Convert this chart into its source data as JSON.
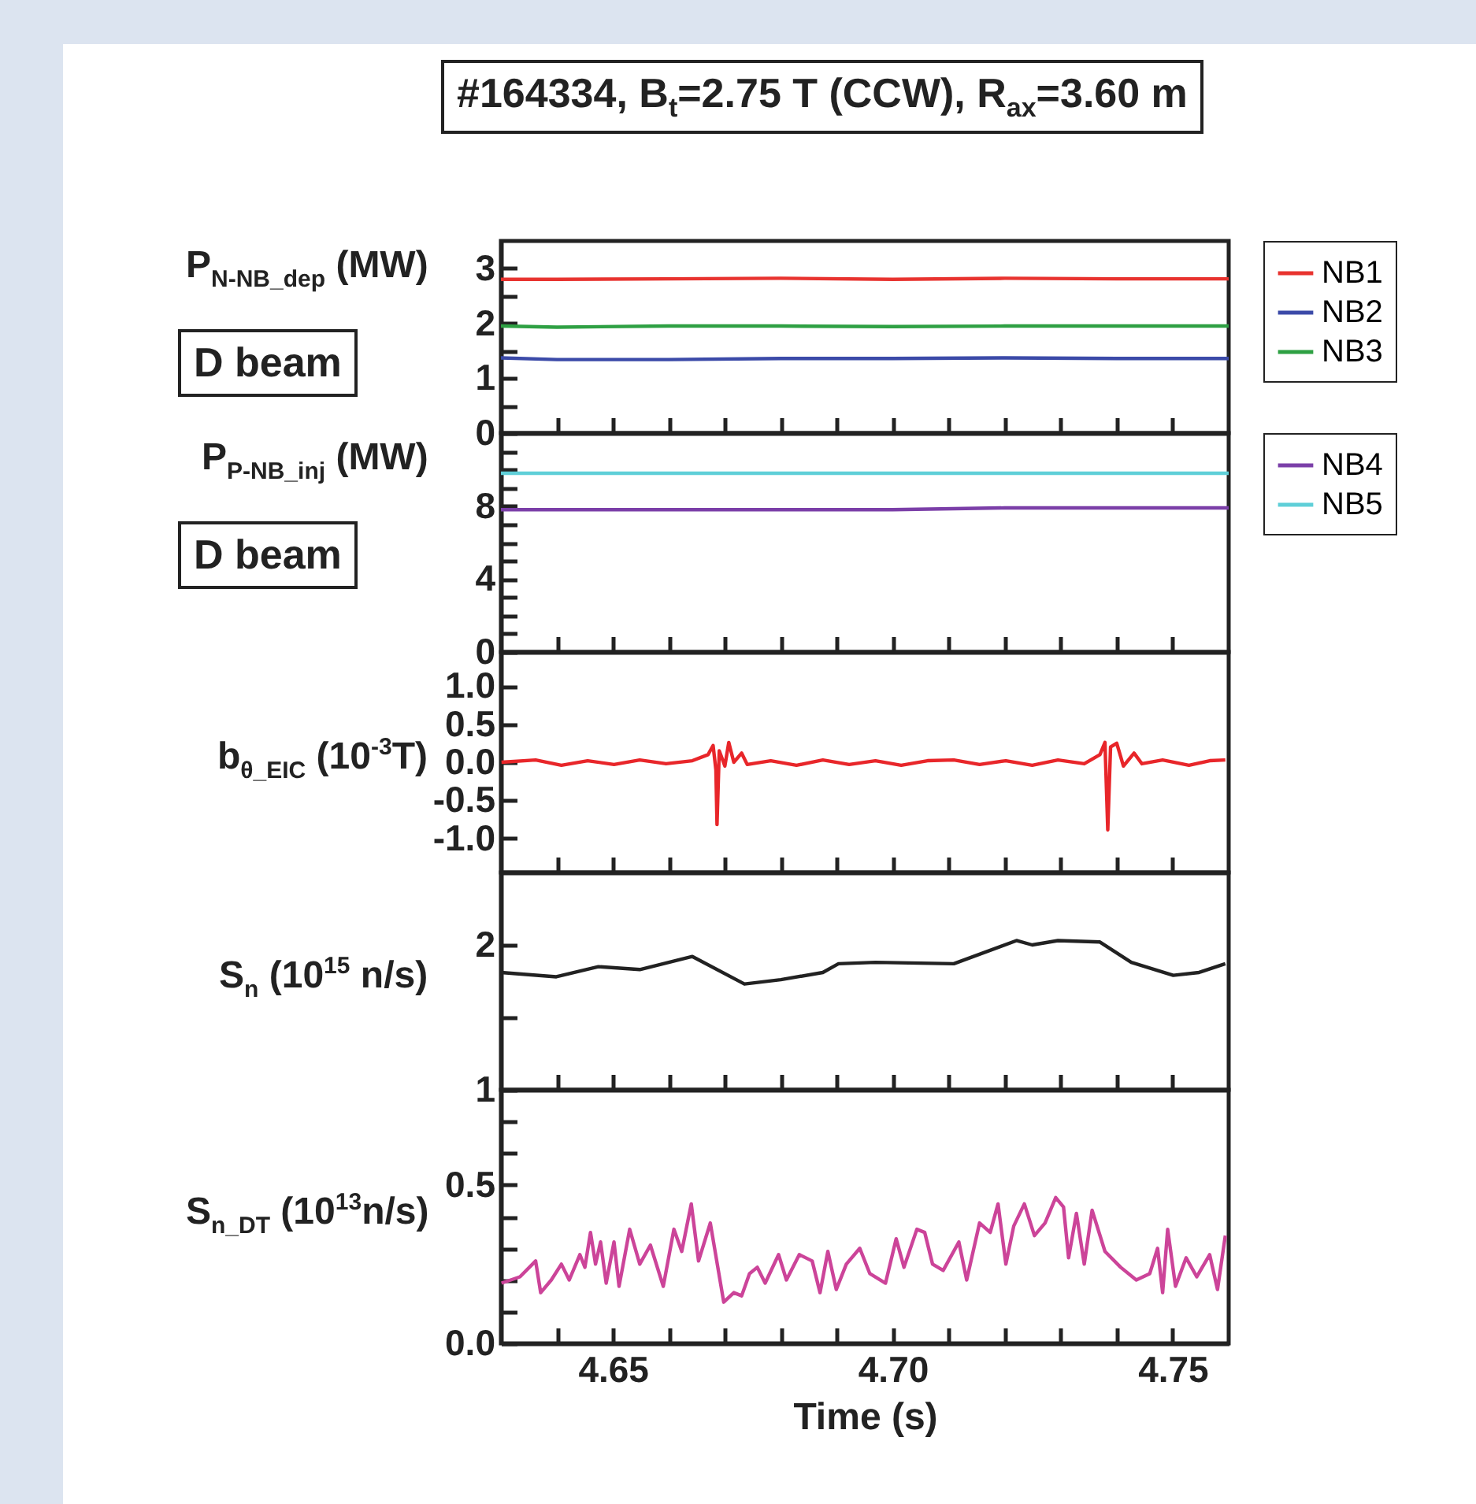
{
  "chart_data": [
    {
      "type": "line",
      "title": "#164334, B$_{t}$=2.75 T (CCW), R$_{ax}$=3.60 m",
      "ylabel": "P$_{N-NB_dep}$ (MW)",
      "annotations": [
        "D beam"
      ],
      "legend": "right",
      "tick_labels": "y",
      "xlim": [
        4.63,
        4.76
      ],
      "xticks": [
        {
          "value": 4.64,
          "label": null
        },
        {
          "value": 4.65,
          "label": null
        },
        {
          "value": 4.66,
          "label": null
        },
        {
          "value": 4.67,
          "label": null
        },
        {
          "value": 4.68,
          "label": null
        },
        {
          "value": 4.69,
          "label": null
        },
        {
          "value": 4.7,
          "label": null
        },
        {
          "value": 4.71,
          "label": null
        },
        {
          "value": 4.72,
          "label": null
        },
        {
          "value": 4.73,
          "label": null
        },
        {
          "value": 4.74,
          "label": null
        },
        {
          "value": 4.75,
          "label": null
        }
      ],
      "ylim": [
        0,
        3.5
      ],
      "yticks": [
        0,
        {
          "value": 0.5,
          "label": null
        },
        1,
        {
          "value": 1.5,
          "label": null
        },
        2,
        {
          "value": 2.5,
          "label": null
        },
        3
      ],
      "x": [
        4.63,
        4.64,
        4.66,
        4.68,
        4.7,
        4.72,
        4.74,
        4.76
      ],
      "series": [
        {
          "name": "NB1",
          "color": "#e8332f",
          "values": [
            2.8,
            2.8,
            2.81,
            2.82,
            2.8,
            2.82,
            2.81,
            2.81
          ]
        },
        {
          "name": "NB2",
          "color": "#3b4aa8",
          "values": [
            1.37,
            1.34,
            1.34,
            1.36,
            1.36,
            1.37,
            1.36,
            1.36
          ]
        },
        {
          "name": "NB3",
          "color": "#2ea043",
          "values": [
            1.95,
            1.93,
            1.95,
            1.95,
            1.94,
            1.95,
            1.95,
            1.95
          ]
        }
      ]
    },
    {
      "type": "line",
      "ylabel": "P$_{P-NB_inj}$ (MW)",
      "annotations": [
        "D beam"
      ],
      "legend": "right",
      "tick_labels": "y",
      "xlim": [
        4.63,
        4.76
      ],
      "xticks": [
        {
          "value": 4.64,
          "label": null
        },
        {
          "value": 4.65,
          "label": null
        },
        {
          "value": 4.66,
          "label": null
        },
        {
          "value": 4.67,
          "label": null
        },
        {
          "value": 4.68,
          "label": null
        },
        {
          "value": 4.69,
          "label": null
        },
        {
          "value": 4.7,
          "label": null
        },
        {
          "value": 4.71,
          "label": null
        },
        {
          "value": 4.72,
          "label": null
        },
        {
          "value": 4.73,
          "label": null
        },
        {
          "value": 4.74,
          "label": null
        },
        {
          "value": 4.75,
          "label": null
        }
      ],
      "ylim": [
        0,
        12
      ],
      "yticks": [
        0,
        {
          "value": 1,
          "label": null
        },
        {
          "value": 2,
          "label": null
        },
        {
          "value": 3,
          "label": null
        },
        4,
        {
          "value": 5,
          "label": null
        },
        {
          "value": 6,
          "label": null
        },
        {
          "value": 7,
          "label": null
        },
        8,
        {
          "value": 9,
          "label": null
        },
        {
          "value": 10,
          "label": null
        },
        {
          "value": 11,
          "label": null
        }
      ],
      "x": [
        4.63,
        4.64,
        4.66,
        4.68,
        4.7,
        4.72,
        4.74,
        4.76
      ],
      "series": [
        {
          "name": "NB4",
          "color": "#7b3fa8",
          "values": [
            7.8,
            7.8,
            7.8,
            7.8,
            7.8,
            7.9,
            7.9,
            7.9
          ]
        },
        {
          "name": "NB5",
          "color": "#5fcfd8",
          "values": [
            9.8,
            9.8,
            9.8,
            9.8,
            9.8,
            9.8,
            9.8,
            9.8
          ]
        }
      ]
    },
    {
      "type": "line",
      "ylabel": "b$_{θ_EIC}$ (10$^{-3}$T)",
      "tick_labels": "y",
      "xlim": [
        4.63,
        4.76
      ],
      "xticks": [
        {
          "value": 4.64,
          "label": null
        },
        {
          "value": 4.65,
          "label": null
        },
        {
          "value": 4.66,
          "label": null
        },
        {
          "value": 4.67,
          "label": null
        },
        {
          "value": 4.68,
          "label": null
        },
        {
          "value": 4.69,
          "label": null
        },
        {
          "value": 4.7,
          "label": null
        },
        {
          "value": 4.71,
          "label": null
        },
        {
          "value": 4.72,
          "label": null
        },
        {
          "value": 4.73,
          "label": null
        },
        {
          "value": 4.74,
          "label": null
        },
        {
          "value": 4.75,
          "label": null
        }
      ],
      "ylim": [
        -1.45,
        1.45
      ],
      "yticks": [
        {
          "value": -1,
          "label": "-1.0"
        },
        -0.5,
        {
          "value": 0,
          "label": "0.0"
        },
        0.5,
        {
          "value": 1,
          "label": "1.0"
        }
      ],
      "x": [
        4.6301,
        4.6362,
        4.6408,
        4.6455,
        4.6502,
        4.6548,
        4.6595,
        4.6642,
        4.667,
        4.6679,
        4.6684,
        4.6686,
        4.669,
        4.67,
        4.6707,
        4.6716,
        4.673,
        4.674,
        4.6782,
        4.6828,
        4.6875,
        4.6922,
        4.6969,
        4.7015,
        4.7062,
        4.7109,
        4.7155,
        4.7202,
        4.7249,
        4.7295,
        4.7342,
        4.737,
        4.7379,
        4.7384,
        4.7389,
        4.74,
        4.7412,
        4.7431,
        4.7445,
        4.7482,
        4.7529,
        4.7566,
        4.7594
      ],
      "series": [
        {
          "color": "#e8262a",
          "values": [
            0,
            0.03,
            -0.04,
            0.02,
            -0.03,
            0.03,
            -0.02,
            0.02,
            0.1,
            0.22,
            -0.1,
            -0.82,
            0.15,
            -0.05,
            0.26,
            0,
            0.12,
            -0.03,
            0.02,
            -0.04,
            0.03,
            -0.03,
            0.02,
            -0.04,
            0.02,
            0.03,
            -0.03,
            0.02,
            -0.04,
            0.03,
            -0.02,
            0.1,
            0.26,
            -0.89,
            0.2,
            0.25,
            -0.05,
            0.12,
            -0.02,
            0.03,
            -0.04,
            0.02,
            0.03
          ]
        }
      ]
    },
    {
      "type": "line",
      "ylabel": "S$_{n}$ (10$^{15}$ n/s)",
      "tick_labels": "y",
      "xlim": [
        4.63,
        4.76
      ],
      "xticks": [
        {
          "value": 4.64,
          "label": null
        },
        {
          "value": 4.65,
          "label": null
        },
        {
          "value": 4.66,
          "label": null
        },
        {
          "value": 4.67,
          "label": null
        },
        {
          "value": 4.68,
          "label": null
        },
        {
          "value": 4.69,
          "label": null
        },
        {
          "value": 4.7,
          "label": null
        },
        {
          "value": 4.71,
          "label": null
        },
        {
          "value": 4.72,
          "label": null
        },
        {
          "value": 4.73,
          "label": null
        },
        {
          "value": 4.74,
          "label": null
        },
        {
          "value": 4.75,
          "label": null
        }
      ],
      "ylim": [
        1,
        2.5
      ],
      "yticks": [
        1,
        {
          "value": 1.5,
          "label": null
        },
        2
      ],
      "x": [
        4.63,
        4.6399,
        4.6474,
        4.6548,
        4.6642,
        4.6735,
        4.68,
        4.6875,
        4.6903,
        4.6969,
        4.7109,
        4.7221,
        4.7249,
        4.7295,
        4.737,
        4.7426,
        4.7501,
        4.7547,
        4.7594
      ],
      "series": [
        {
          "color": "#222222",
          "values": [
            1.81,
            1.78,
            1.85,
            1.83,
            1.92,
            1.73,
            1.76,
            1.81,
            1.87,
            1.88,
            1.87,
            2.03,
            2.0,
            2.03,
            2.02,
            1.88,
            1.79,
            1.81,
            1.87
          ]
        }
      ]
    },
    {
      "type": "line",
      "ylabel": "S$_{n_DT}$ (10$^{13}$n/s)",
      "xlabel": "Time (s)",
      "xlim": [
        4.63,
        4.76
      ],
      "xticks": [
        {
          "value": 4.64,
          "label": null
        },
        {
          "value": 4.65,
          "label": "4.65"
        },
        {
          "value": 4.66,
          "label": null
        },
        {
          "value": 4.67,
          "label": null
        },
        {
          "value": 4.68,
          "label": null
        },
        {
          "value": 4.69,
          "label": null
        },
        {
          "value": 4.7,
          "label": "4.70"
        },
        {
          "value": 4.71,
          "label": null
        },
        {
          "value": 4.72,
          "label": null
        },
        {
          "value": 4.73,
          "label": null
        },
        {
          "value": 4.74,
          "label": null
        },
        {
          "value": 4.75,
          "label": "4.75"
        }
      ],
      "ylim": [
        0,
        0.8
      ],
      "yticks": [
        {
          "value": 0,
          "label": "0.0"
        },
        {
          "value": 0.1,
          "label": null
        },
        {
          "value": 0.2,
          "label": null
        },
        {
          "value": 0.3,
          "label": null
        },
        {
          "value": 0.4,
          "label": null
        },
        0.5,
        {
          "value": 0.6,
          "label": null
        },
        {
          "value": 0.7,
          "label": null
        }
      ],
      "x": [
        4.6301,
        4.6334,
        4.6362,
        4.6371,
        4.639,
        4.6408,
        4.6422,
        4.6441,
        4.645,
        4.646,
        4.6469,
        4.6478,
        4.6488,
        4.6502,
        4.6511,
        4.653,
        4.6548,
        4.6567,
        4.659,
        4.6609,
        4.6623,
        4.664,
        4.6653,
        4.6674,
        4.6698,
        4.6716,
        4.673,
        4.6744,
        4.6758,
        4.6772,
        4.6796,
        4.681,
        4.6833,
        4.6856,
        4.687,
        4.6884,
        4.6899,
        4.6917,
        4.6941,
        4.6959,
        4.6987,
        4.7006,
        4.702,
        4.7043,
        4.7057,
        4.7071,
        4.709,
        4.7118,
        4.7132,
        4.7155,
        4.7174,
        4.7188,
        4.7202,
        4.7216,
        4.7235,
        4.7253,
        4.7272,
        4.7291,
        4.7305,
        4.7314,
        4.7328,
        4.7342,
        4.7356,
        4.7379,
        4.7407,
        4.7435,
        4.7459,
        4.7473,
        4.7482,
        4.7491,
        4.7505,
        4.7524,
        4.7543,
        4.7566,
        4.758,
        4.7594
      ],
      "series": [
        {
          "color": "#cc4499",
          "values": [
            0.19,
            0.21,
            0.26,
            0.16,
            0.2,
            0.25,
            0.2,
            0.28,
            0.24,
            0.35,
            0.25,
            0.32,
            0.19,
            0.32,
            0.18,
            0.36,
            0.25,
            0.31,
            0.18,
            0.36,
            0.29,
            0.44,
            0.26,
            0.38,
            0.13,
            0.16,
            0.15,
            0.22,
            0.24,
            0.19,
            0.28,
            0.2,
            0.28,
            0.26,
            0.16,
            0.29,
            0.17,
            0.25,
            0.3,
            0.22,
            0.19,
            0.33,
            0.24,
            0.36,
            0.35,
            0.25,
            0.23,
            0.32,
            0.2,
            0.38,
            0.35,
            0.44,
            0.25,
            0.37,
            0.44,
            0.34,
            0.38,
            0.46,
            0.43,
            0.27,
            0.41,
            0.25,
            0.42,
            0.29,
            0.24,
            0.2,
            0.22,
            0.3,
            0.16,
            0.36,
            0.18,
            0.27,
            0.21,
            0.28,
            0.17,
            0.34
          ]
        }
      ]
    }
  ]
}
